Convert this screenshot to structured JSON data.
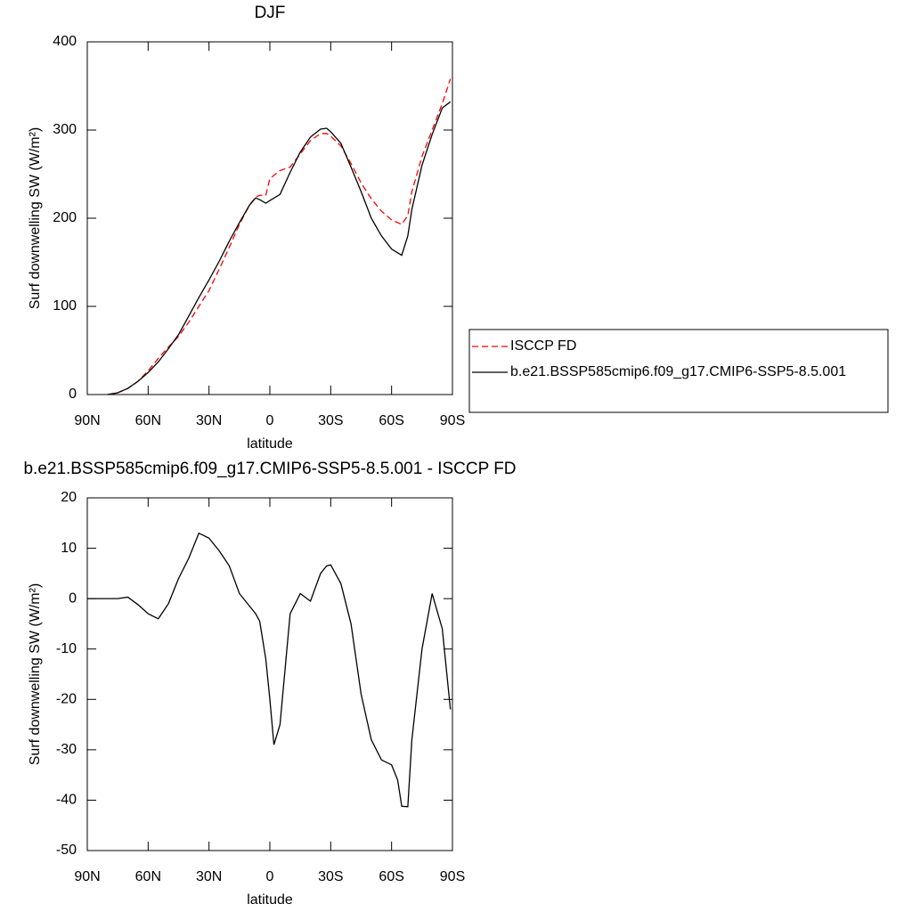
{
  "chart_data": [
    {
      "type": "line",
      "title": "DJF",
      "x_label": "latitude",
      "y_label": "Surf downwelling SW (W/m²)",
      "x": [
        80,
        75,
        70,
        65,
        60,
        55,
        50,
        45,
        40,
        35,
        30,
        25,
        20,
        15,
        10,
        7,
        5,
        2,
        0,
        -5,
        -10,
        -15,
        -20,
        -25,
        -28,
        -30,
        -35,
        -40,
        -45,
        -50,
        -55,
        -60,
        -65,
        -68,
        -70,
        -75,
        -80,
        -85,
        -89
      ],
      "series": [
        {
          "name": "ISCCP FD",
          "color": "#ff0000",
          "line_style": "dashed",
          "values": [
            0,
            2,
            7,
            15,
            27,
            41,
            54,
            66,
            82,
            100,
            118,
            142,
            167,
            193,
            215,
            224,
            226,
            226,
            245,
            254,
            258,
            273,
            288,
            296,
            296,
            293,
            282,
            262,
            240,
            222,
            208,
            198,
            193,
            203,
            230,
            270,
            300,
            330,
            358
          ]
        },
        {
          "name": "b.e21.BSSP585cmip6.f09_g17.CMIP6-SSP5-8.5.001",
          "color": "#000000",
          "line_style": "solid",
          "values": [
            0,
            2,
            7,
            15,
            25,
            37,
            52,
            68,
            89,
            110,
            130,
            151,
            174,
            195,
            215,
            223,
            221,
            217,
            220,
            227,
            252,
            275,
            292,
            301,
            302,
            298,
            285,
            258,
            230,
            200,
            180,
            165,
            158,
            180,
            210,
            260,
            295,
            325,
            332
          ]
        }
      ],
      "xlim": [
        90,
        -90
      ],
      "xticks": [
        {
          "value": 90,
          "label": "90N"
        },
        {
          "value": 60,
          "label": "60N"
        },
        {
          "value": 30,
          "label": "30N"
        },
        0,
        {
          "value": -30,
          "label": "30S"
        },
        {
          "value": -60,
          "label": "60S"
        },
        {
          "value": -90,
          "label": "90S"
        }
      ],
      "ylim": [
        0,
        400
      ],
      "yticks": [
        0,
        100,
        200,
        300,
        400
      ],
      "legend": "right"
    },
    {
      "type": "line",
      "title": "b.e21.BSSP585cmip6.f09_g17.CMIP6-SSP5-8.5.001 - ISCCP FD",
      "x_label": "latitude",
      "y_label": "Surf downwelling SW (W/m²)",
      "x": [
        90,
        85,
        80,
        75,
        70,
        65,
        60,
        55,
        50,
        45,
        40,
        35,
        30,
        25,
        20,
        15,
        10,
        7,
        5,
        2,
        0,
        -2,
        -5,
        -10,
        -15,
        -20,
        -25,
        -28,
        -30,
        -35,
        -40,
        -45,
        -50,
        -55,
        -60,
        -63,
        -65,
        -68,
        -70,
        -75,
        -80,
        -85,
        -89
      ],
      "series": [
        {
          "color": "#000000",
          "line_style": "solid",
          "values": [
            0,
            0,
            0,
            0,
            0.3,
            -1.2,
            -3,
            -4,
            -1,
            4,
            8,
            13,
            12,
            9.5,
            6.5,
            1,
            -1.5,
            -3,
            -4.5,
            -12,
            -20,
            -29,
            -25,
            -3,
            1,
            -0.5,
            5,
            6.5,
            6.7,
            3,
            -5,
            -19,
            -28,
            -32,
            -33,
            -36,
            -41.2,
            -41.3,
            -28,
            -10,
            1,
            -6,
            -22
          ]
        }
      ],
      "xlim": [
        90,
        -90
      ],
      "xticks": [
        {
          "value": 90,
          "label": "90N"
        },
        {
          "value": 60,
          "label": "60N"
        },
        {
          "value": 30,
          "label": "30N"
        },
        0,
        {
          "value": -30,
          "label": "30S"
        },
        {
          "value": -60,
          "label": "60S"
        },
        {
          "value": -90,
          "label": "90S"
        }
      ],
      "ylim": [
        -50,
        20
      ],
      "yticks": [
        -50,
        -40,
        -30,
        -20,
        -10,
        0,
        10,
        20
      ]
    }
  ]
}
